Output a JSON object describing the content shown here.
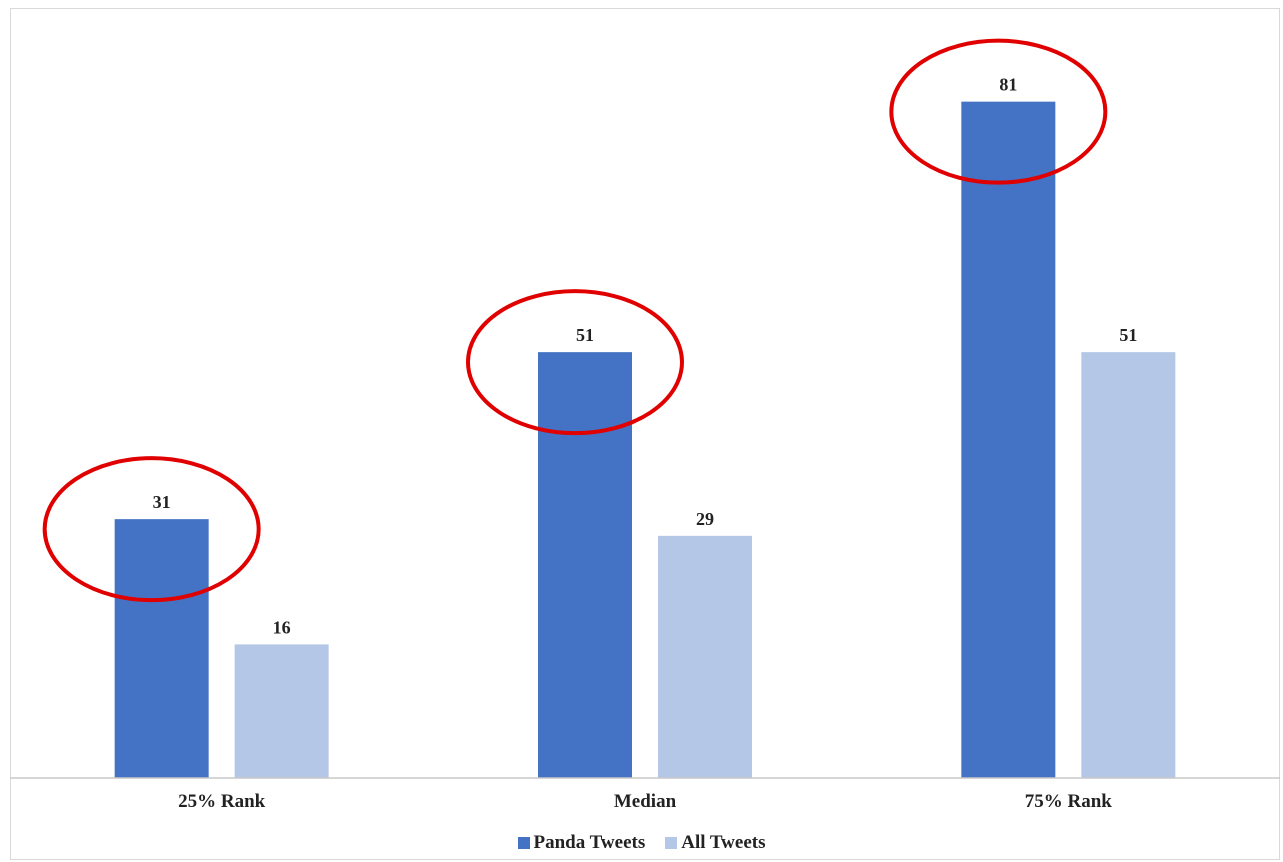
{
  "chart_data": {
    "type": "bar",
    "categories": [
      "25% Rank",
      "Median",
      "75% Rank"
    ],
    "series": [
      {
        "name": "Panda Tweets",
        "values": [
          31,
          51,
          81
        ],
        "color": "#4472C4"
      },
      {
        "name": "All Tweets",
        "values": [
          16,
          29,
          51
        ],
        "color": "#B4C7E7"
      }
    ],
    "title": "",
    "xlabel": "",
    "ylabel": "",
    "ylim": [
      0,
      85
    ],
    "grid": false,
    "legend_position": "bottom",
    "annotations": [
      {
        "type": "ellipse",
        "color": "#E00000",
        "target_series": "Panda Tweets",
        "target_category": "25% Rank"
      },
      {
        "type": "ellipse",
        "color": "#E00000",
        "target_series": "Panda Tweets",
        "target_category": "Median"
      },
      {
        "type": "ellipse",
        "color": "#E00000",
        "target_series": "Panda Tweets",
        "target_category": "75% Rank"
      }
    ]
  }
}
